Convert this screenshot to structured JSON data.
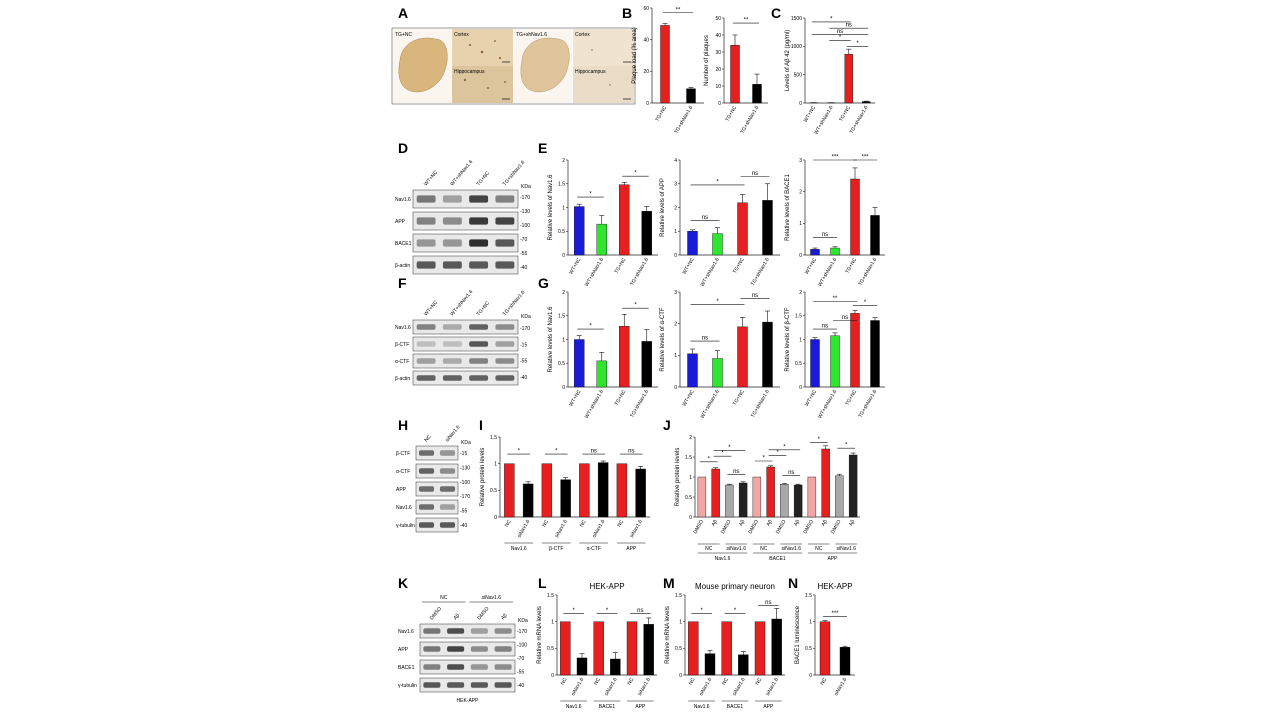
{
  "colors": {
    "nc": "#e62020",
    "sh": "#000000",
    "wt": "#1a1adb",
    "wtsh": "#2ee62e",
    "pink": "#f2a5a5",
    "gray": "#a8a8a8",
    "dark": "#222222"
  },
  "panels": {
    "A": "A",
    "B": "B",
    "C": "C",
    "D": "D",
    "E": "E",
    "F": "F",
    "G": "G",
    "H": "H",
    "I": "I",
    "J": "J",
    "K": "K",
    "L": "L",
    "M": "M",
    "N": "N"
  },
  "panelA": {
    "left_group": "TG+NC",
    "right_group": "TG+shNav1.6",
    "cortex": "Cortex",
    "hippocampus": "Hippocampus"
  },
  "blots": {
    "kda": "KDa",
    "D": {
      "lanes": [
        "WT+NC",
        "WT+shNav1.6",
        "TG+NC",
        "TG+shNav1.6"
      ],
      "rows": [
        "Nav1.6",
        "APP",
        "BACE1",
        "β-actin"
      ],
      "markers": [
        "-170",
        "-130",
        "-100",
        "-70",
        "-55",
        "-40"
      ]
    },
    "F": {
      "lanes": [
        "WT+NC",
        "WT+shNav1.6",
        "TG+NC",
        "TG+shNav1.6"
      ],
      "rows": [
        "Nav1.6",
        "β-CTF",
        "α-CTF",
        "β-actin"
      ],
      "markers": [
        "-170",
        "-15",
        "-55",
        "-40"
      ]
    },
    "H": {
      "lanes": [
        "NC",
        "siNav1.6"
      ],
      "rows": [
        "β-CTF",
        "α-CTF",
        "APP",
        "Nav1.6",
        "γ-tubulin"
      ],
      "markers": [
        "-15",
        "-130",
        "-100",
        "-170",
        "-55",
        "-40"
      ]
    },
    "K": {
      "groups": [
        "NC",
        "siNav1.6"
      ],
      "lanes": [
        "DMSO",
        "Aβ",
        "DMSO",
        "Aβ"
      ],
      "rows": [
        "Nav1.6",
        "APP",
        "BACE1",
        "γ-tubulin"
      ],
      "markers": [
        "-170",
        "-100",
        "-70",
        "-55",
        "-40"
      ],
      "footer": "HEK-APP"
    }
  },
  "chart_data": [
    {
      "id": "B1",
      "type": "bar",
      "ylabel": "Plaque load (% area)",
      "ylim": [
        0,
        60
      ],
      "yticks": [
        0,
        20,
        40,
        60
      ],
      "categories": [
        "TG+NC",
        "TG+shNav1.6"
      ],
      "values": [
        49,
        9
      ],
      "errors": [
        1.2,
        0.8
      ],
      "colors": [
        "#e62020",
        "#000000"
      ],
      "sig": [
        {
          "a": 0,
          "b": 1,
          "label": "**",
          "y": 57
        }
      ]
    },
    {
      "id": "B2",
      "type": "bar",
      "ylabel": "Number of plaques",
      "ylim": [
        0,
        50
      ],
      "yticks": [
        0,
        10,
        20,
        30,
        40,
        50
      ],
      "categories": [
        "TG+NC",
        "TG+shNav1.6"
      ],
      "values": [
        34,
        11
      ],
      "errors": [
        6,
        6
      ],
      "colors": [
        "#e62020",
        "#000000"
      ],
      "sig": [
        {
          "a": 0,
          "b": 1,
          "label": "**",
          "y": 47
        }
      ]
    },
    {
      "id": "C",
      "type": "bar",
      "ylabel": "Levels of Aβ 42 (pg/ml)",
      "ylim": [
        0,
        1500
      ],
      "yticks": [
        0,
        500,
        1000,
        1500
      ],
      "categories": [
        "WT+NC",
        "WT+shNav1.6",
        "TG+NC",
        "TG+shNav1.6"
      ],
      "values": [
        5,
        5,
        860,
        25
      ],
      "errors": [
        2,
        2,
        90,
        8
      ],
      "colors": [
        "#1a1adb",
        "#2ee62e",
        "#e62020",
        "#000000"
      ],
      "sig": [
        {
          "a": 0,
          "b": 2,
          "label": "*",
          "y": 1430
        },
        {
          "a": 1,
          "b": 3,
          "label": "ns",
          "y": 1320
        },
        {
          "a": 0,
          "b": 3,
          "label": "ns",
          "y": 1210
        },
        {
          "a": 1,
          "b": 2,
          "label": "*",
          "y": 1100
        },
        {
          "a": 2,
          "b": 3,
          "label": "*",
          "y": 1000
        }
      ]
    },
    {
      "id": "E1",
      "type": "bar",
      "ylabel": "Relative levels of Nav1.6",
      "ylim": [
        0,
        2.0
      ],
      "yticks": [
        0,
        0.5,
        1.0,
        1.5,
        2.0
      ],
      "categories": [
        "WT+NC",
        "WT+shNav1.6",
        "TG+NC",
        "TG+shNav1.6"
      ],
      "values": [
        1.02,
        0.65,
        1.48,
        0.92
      ],
      "errors": [
        0.05,
        0.18,
        0.05,
        0.1
      ],
      "colors": [
        "#1a1adb",
        "#2ee62e",
        "#e62020",
        "#000000"
      ],
      "sig": [
        {
          "a": 0,
          "b": 1,
          "label": "*",
          "y": 1.22
        },
        {
          "a": 2,
          "b": 3,
          "label": "*",
          "y": 1.66
        }
      ]
    },
    {
      "id": "E2",
      "type": "bar",
      "ylabel": "Relative levels of APP",
      "ylim": [
        0,
        4
      ],
      "yticks": [
        0,
        1,
        2,
        3,
        4
      ],
      "categories": [
        "WT+NC",
        "WT+shNav1.6",
        "TG+NC",
        "TG+shNav1.6"
      ],
      "values": [
        1.0,
        0.9,
        2.2,
        2.3
      ],
      "errors": [
        0.06,
        0.25,
        0.35,
        0.7
      ],
      "colors": [
        "#1a1adb",
        "#2ee62e",
        "#e62020",
        "#000000"
      ],
      "sig": [
        {
          "a": 0,
          "b": 1,
          "label": "ns",
          "y": 1.45
        },
        {
          "a": 0,
          "b": 2,
          "label": "*",
          "y": 2.95
        },
        {
          "a": 2,
          "b": 3,
          "label": "ns",
          "y": 3.3
        }
      ]
    },
    {
      "id": "E3",
      "type": "bar",
      "ylabel": "Relative levels of BACE1",
      "ylim": [
        0,
        3
      ],
      "yticks": [
        0,
        1,
        2,
        3
      ],
      "categories": [
        "WT+NC",
        "WT+shNav1.6",
        "TG+NC",
        "TG+shNav1.6"
      ],
      "values": [
        0.18,
        0.22,
        2.4,
        1.25
      ],
      "errors": [
        0.04,
        0.04,
        0.35,
        0.25
      ],
      "colors": [
        "#1a1adb",
        "#2ee62e",
        "#e62020",
        "#000000"
      ],
      "sig": [
        {
          "a": 0,
          "b": 1,
          "label": "ns",
          "y": 0.55
        },
        {
          "a": 0,
          "b": 2,
          "label": "***",
          "y": 3.0
        },
        {
          "a": 2,
          "b": 3,
          "label": "***",
          "y": 3.0
        }
      ]
    },
    {
      "id": "G1",
      "type": "bar",
      "ylabel": "Relative levels of Nav1.6",
      "ylim": [
        0,
        2.0
      ],
      "yticks": [
        0,
        0.5,
        1.0,
        1.5,
        2.0
      ],
      "categories": [
        "WT+NC",
        "WT+shNav1.6",
        "TG+NC",
        "TG+shNav1.6"
      ],
      "values": [
        1.0,
        0.55,
        1.28,
        0.96
      ],
      "errors": [
        0.08,
        0.18,
        0.25,
        0.25
      ],
      "colors": [
        "#1a1adb",
        "#2ee62e",
        "#e62020",
        "#000000"
      ],
      "sig": [
        {
          "a": 0,
          "b": 1,
          "label": "*",
          "y": 1.22
        },
        {
          "a": 2,
          "b": 3,
          "label": "*",
          "y": 1.66
        }
      ]
    },
    {
      "id": "G2",
      "type": "bar",
      "ylabel": "Relative levels of α-CTF",
      "ylim": [
        0,
        3
      ],
      "yticks": [
        0,
        1,
        2,
        3
      ],
      "categories": [
        "WT+NC",
        "WT+shNav1.6",
        "TG+NC",
        "TG+shNav1.6"
      ],
      "values": [
        1.05,
        0.9,
        1.9,
        2.05
      ],
      "errors": [
        0.15,
        0.25,
        0.3,
        0.35
      ],
      "colors": [
        "#1a1adb",
        "#2ee62e",
        "#e62020",
        "#000000"
      ],
      "sig": [
        {
          "a": 0,
          "b": 1,
          "label": "ns",
          "y": 1.45
        },
        {
          "a": 0,
          "b": 2,
          "label": "*",
          "y": 2.6
        },
        {
          "a": 2,
          "b": 3,
          "label": "ns",
          "y": 2.8
        }
      ]
    },
    {
      "id": "G3",
      "type": "bar",
      "ylabel": "Relative levels of β-CTF",
      "ylim": [
        0,
        2.0
      ],
      "yticks": [
        0,
        0.5,
        1.0,
        1.5,
        2.0
      ],
      "categories": [
        "WT+NC",
        "WT+shNav1.6",
        "TG+NC",
        "TG+shNav1.6"
      ],
      "values": [
        1.0,
        1.08,
        1.55,
        1.4
      ],
      "errors": [
        0.04,
        0.06,
        0.06,
        0.06
      ],
      "colors": [
        "#1a1adb",
        "#2ee62e",
        "#e62020",
        "#000000"
      ],
      "sig": [
        {
          "a": 0,
          "b": 1,
          "label": "ns",
          "y": 1.22
        },
        {
          "a": 1,
          "b": 2,
          "label": "ns",
          "y": 1.4
        },
        {
          "a": 0,
          "b": 2,
          "label": "**",
          "y": 1.8
        },
        {
          "a": 2,
          "b": 3,
          "label": "*",
          "y": 1.72
        }
      ]
    },
    {
      "id": "I",
      "type": "bar",
      "ylabel": "Relative protein levels",
      "ylim": [
        0,
        1.5
      ],
      "yticks": [
        0,
        0.5,
        1.0,
        1.5
      ],
      "categories": [
        "NC",
        "siNav1.6",
        "NC",
        "siNav1.6",
        "NC",
        "siNav1.6",
        "NC",
        "siNav1.6"
      ],
      "groups": [
        "Nav1.6",
        "β-CTF",
        "α-CTF",
        "APP"
      ],
      "values": [
        1.0,
        0.62,
        1.0,
        0.7,
        1.0,
        1.02,
        1.0,
        0.9
      ],
      "errors": [
        0,
        0.04,
        0,
        0.04,
        0,
        0.03,
        0,
        0.05
      ],
      "colors": [
        "#e62020",
        "#000000",
        "#e62020",
        "#000000",
        "#e62020",
        "#000000",
        "#e62020",
        "#000000"
      ],
      "sig": [
        {
          "a": 0,
          "b": 1,
          "label": "*",
          "y": 1.18
        },
        {
          "a": 2,
          "b": 3,
          "label": "*",
          "y": 1.18
        },
        {
          "a": 4,
          "b": 5,
          "label": "ns",
          "y": 1.18
        },
        {
          "a": 6,
          "b": 7,
          "label": "ns",
          "y": 1.18
        }
      ]
    },
    {
      "id": "J",
      "type": "bar",
      "ylabel": "Relative protein levels",
      "ylim": [
        0,
        2.0
      ],
      "yticks": [
        0,
        0.5,
        1.0,
        1.5,
        2.0
      ],
      "categories": [
        "DMSO",
        "Aβ",
        "DMSO",
        "Aβ",
        "DMSO",
        "Aβ",
        "DMSO",
        "Aβ",
        "DMSO",
        "Aβ",
        "DMSO",
        "Aβ"
      ],
      "subgroups": [
        "NC",
        "siNav1.6",
        "NC",
        "siNav1.6",
        "NC",
        "siNav1.6"
      ],
      "groups": [
        "Nav1.6",
        "BACE1",
        "APP"
      ],
      "values": [
        1.0,
        1.2,
        0.8,
        0.85,
        1.0,
        1.25,
        0.82,
        0.8,
        1.0,
        1.7,
        1.03,
        1.55
      ],
      "errors": [
        0,
        0.03,
        0.02,
        0.03,
        0,
        0.03,
        0.02,
        0.02,
        0,
        0.08,
        0.04,
        0.05
      ],
      "colors": [
        "#f2a5a5",
        "#e62020",
        "#a8a8a8",
        "#222222",
        "#f2a5a5",
        "#e62020",
        "#a8a8a8",
        "#222222",
        "#f2a5a5",
        "#e62020",
        "#a8a8a8",
        "#222222"
      ],
      "sig": [
        {
          "a": 0,
          "b": 1,
          "label": "*",
          "y": 1.38
        },
        {
          "a": 1,
          "b": 2,
          "label": "*",
          "y": 1.52
        },
        {
          "a": 1,
          "b": 3,
          "label": "*",
          "y": 1.66
        },
        {
          "a": 2,
          "b": 3,
          "label": "ns",
          "y": 1.06
        },
        {
          "a": 4,
          "b": 5,
          "label": "*",
          "y": 1.4
        },
        {
          "a": 5,
          "b": 6,
          "label": "*",
          "y": 1.54
        },
        {
          "a": 5,
          "b": 7,
          "label": "*",
          "y": 1.68
        },
        {
          "a": 6,
          "b": 7,
          "label": "ns",
          "y": 1.04
        },
        {
          "a": 8,
          "b": 9,
          "label": "*",
          "y": 1.86
        },
        {
          "a": 10,
          "b": 11,
          "label": "*",
          "y": 1.72
        }
      ]
    },
    {
      "id": "L",
      "type": "bar",
      "title": "HEK-APP",
      "ylabel": "Relative mRNA levels",
      "ylim": [
        0,
        1.5
      ],
      "yticks": [
        0,
        0.5,
        1.0,
        1.5
      ],
      "categories": [
        "NC",
        "siNav1.6",
        "NC",
        "siNav1.6",
        "NC",
        "siNav1.6"
      ],
      "groups": [
        "Nav1.6",
        "BACE1",
        "APP"
      ],
      "values": [
        1.0,
        0.32,
        1.0,
        0.3,
        1.0,
        0.95
      ],
      "errors": [
        0,
        0.08,
        0,
        0.12,
        0,
        0.12
      ],
      "colors": [
        "#e62020",
        "#000000",
        "#e62020",
        "#000000",
        "#e62020",
        "#000000"
      ],
      "sig": [
        {
          "a": 0,
          "b": 1,
          "label": "*",
          "y": 1.15
        },
        {
          "a": 2,
          "b": 3,
          "label": "*",
          "y": 1.15
        },
        {
          "a": 4,
          "b": 5,
          "label": "ns",
          "y": 1.15
        }
      ]
    },
    {
      "id": "M",
      "type": "bar",
      "title": "Mouse primary neuron",
      "ylabel": "Relative mRNA levels",
      "ylim": [
        0,
        1.5
      ],
      "yticks": [
        0,
        0.5,
        1.0,
        1.5
      ],
      "categories": [
        "NC",
        "siNav1.6",
        "NC",
        "siNav1.6",
        "NC",
        "siNav1.6"
      ],
      "groups": [
        "Nav1.6",
        "BACE1",
        "APP"
      ],
      "values": [
        1.0,
        0.4,
        1.0,
        0.38,
        1.0,
        1.05
      ],
      "errors": [
        0,
        0.06,
        0,
        0.06,
        0,
        0.2
      ],
      "colors": [
        "#e62020",
        "#000000",
        "#e62020",
        "#000000",
        "#e62020",
        "#000000"
      ],
      "sig": [
        {
          "a": 0,
          "b": 1,
          "label": "*",
          "y": 1.15
        },
        {
          "a": 2,
          "b": 3,
          "label": "*",
          "y": 1.15
        },
        {
          "a": 4,
          "b": 5,
          "label": "ns",
          "y": 1.3
        }
      ]
    },
    {
      "id": "N",
      "type": "bar",
      "title": "HEK-APP",
      "ylabel": "BACE1 luminescence",
      "ylim": [
        0,
        1.5
      ],
      "yticks": [
        0,
        0.5,
        1.0,
        1.5
      ],
      "categories": [
        "NC",
        "siNav1.6"
      ],
      "values": [
        1.0,
        0.52
      ],
      "errors": [
        0.02,
        0.02
      ],
      "colors": [
        "#e62020",
        "#000000"
      ],
      "sig": [
        {
          "a": 0,
          "b": 1,
          "label": "***",
          "y": 1.1
        }
      ]
    }
  ]
}
